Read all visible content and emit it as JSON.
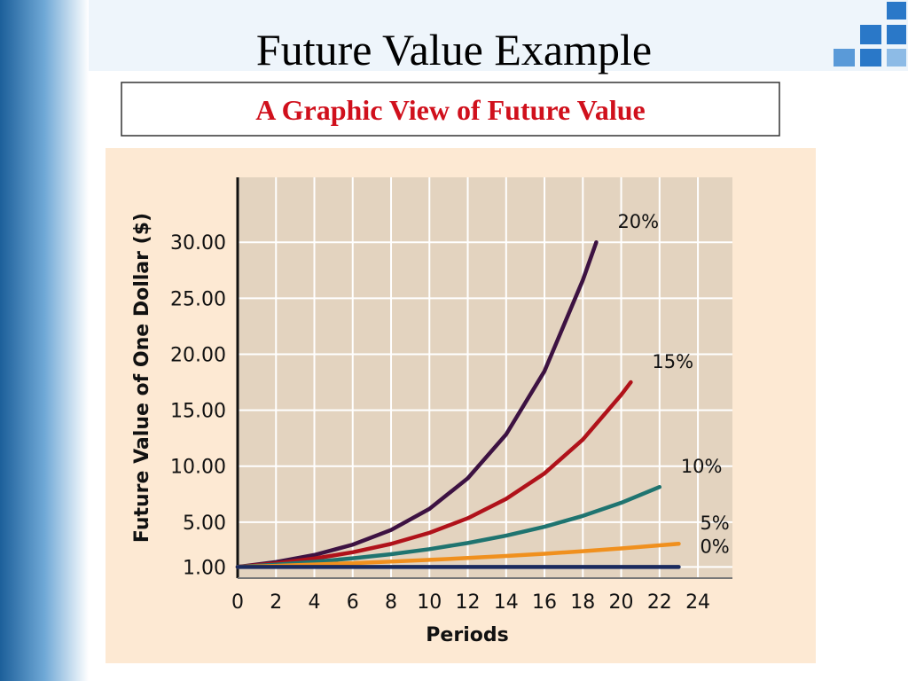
{
  "title": "Future Value Example",
  "subtitle": "A Graphic View of Future Value",
  "chart_data": {
    "type": "line",
    "x_label": "Periods",
    "y_label": "Future Value of One Dollar ($)",
    "xlim": [
      0,
      25.8
    ],
    "ylim": [
      0,
      35.8
    ],
    "xticks": [
      0,
      2,
      4,
      6,
      8,
      10,
      12,
      14,
      16,
      18,
      20,
      22,
      24
    ],
    "yticks": [
      {
        "value": 1,
        "label": "1.00"
      },
      {
        "value": 5,
        "label": "5.00"
      },
      {
        "value": 10,
        "label": "10.00"
      },
      {
        "value": 15,
        "label": "15.00"
      },
      {
        "value": 20,
        "label": "20.00"
      },
      {
        "value": 25,
        "label": "25.00"
      },
      {
        "value": 30,
        "label": "30.00"
      }
    ],
    "grid": true,
    "series": [
      {
        "name": "20%",
        "color": "#3d1242",
        "x": [
          0,
          2,
          4,
          6,
          8,
          10,
          12,
          14,
          16,
          18,
          18.7
        ],
        "values": [
          1,
          1.44,
          2.07,
          2.99,
          4.3,
          6.19,
          8.92,
          12.84,
          18.49,
          26.62,
          30
        ]
      },
      {
        "name": "15%",
        "color": "#b0121a",
        "x": [
          0,
          2,
          4,
          6,
          8,
          10,
          12,
          14,
          16,
          18,
          20,
          20.5
        ],
        "values": [
          1,
          1.32,
          1.75,
          2.31,
          3.06,
          4.05,
          5.35,
          7.08,
          9.36,
          12.38,
          16.37,
          17.5
        ]
      },
      {
        "name": "10%",
        "color": "#1f7470",
        "x": [
          0,
          2,
          4,
          6,
          8,
          10,
          12,
          14,
          16,
          18,
          20,
          22
        ],
        "values": [
          1,
          1.21,
          1.46,
          1.77,
          2.14,
          2.59,
          3.14,
          3.8,
          4.59,
          5.56,
          6.73,
          8.14
        ]
      },
      {
        "name": "5%",
        "color": "#f0901e",
        "x": [
          0,
          2,
          4,
          6,
          8,
          10,
          12,
          14,
          16,
          18,
          20,
          22,
          23
        ],
        "values": [
          1,
          1.1,
          1.22,
          1.34,
          1.48,
          1.63,
          1.8,
          1.98,
          2.18,
          2.41,
          2.65,
          2.93,
          3.07
        ]
      },
      {
        "name": "0%",
        "color": "#1a2a5e",
        "x": [
          0,
          23
        ],
        "values": [
          1,
          1
        ]
      }
    ]
  }
}
